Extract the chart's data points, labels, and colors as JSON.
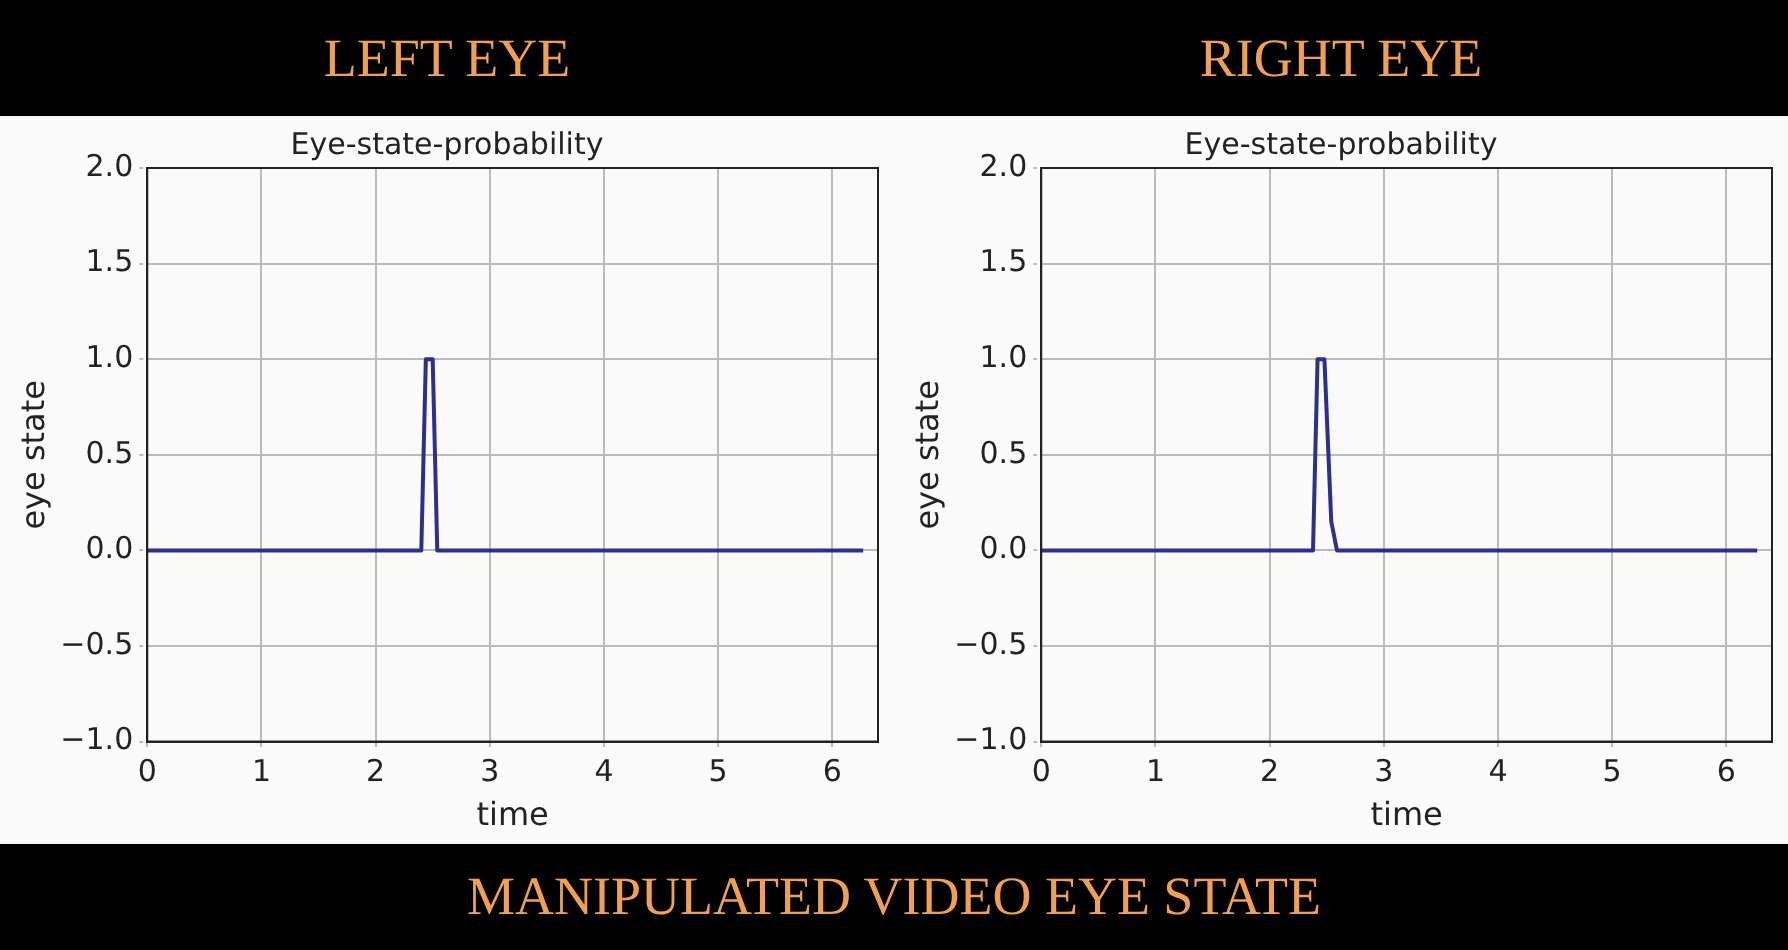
{
  "chart_data": [
    {
      "type": "line",
      "title": "Eye-state-probability",
      "subtitle": "LEFT EYE",
      "xlabel": "time",
      "ylabel": "eye state",
      "annotations": [
        "MANIPULATED VIDEO EYE STATE"
      ],
      "series": [
        {
          "color": "#2b2f8f",
          "x": [
            0,
            2.4,
            2.44,
            2.5,
            2.54,
            6.27
          ],
          "values": [
            0,
            0,
            1,
            1,
            0,
            0
          ]
        }
      ],
      "xlim": [
        0,
        6.4
      ],
      "ylim": [
        -1,
        2
      ],
      "xticks": [
        0,
        1,
        2,
        3,
        4,
        5,
        6
      ],
      "yticks": [
        {
          "value": -1,
          "label": "−1.0"
        },
        {
          "value": -0.5,
          "label": "−0.5"
        },
        {
          "value": 0,
          "label": "0.0"
        },
        {
          "value": 0.5,
          "label": "0.5"
        },
        {
          "value": 1,
          "label": "1.0"
        },
        {
          "value": 1.5,
          "label": "1.5"
        },
        {
          "value": 2,
          "label": "2.0"
        }
      ],
      "grid": true,
      "line_style": "solid"
    },
    {
      "type": "line",
      "title": "Eye-state-probability",
      "subtitle": "RIGHT EYE",
      "xlabel": "time",
      "ylabel": "eye state",
      "series": [
        {
          "color": "#2b2f8f",
          "x": [
            0,
            2.38,
            2.42,
            2.48,
            2.54,
            2.59,
            6.27
          ],
          "values": [
            0,
            0,
            1,
            1,
            0.15,
            0,
            0
          ]
        }
      ],
      "xlim": [
        0,
        6.4
      ],
      "ylim": [
        -1,
        2
      ],
      "xticks": [
        0,
        1,
        2,
        3,
        4,
        5,
        6
      ],
      "yticks": [
        {
          "value": -1,
          "label": "−1.0"
        },
        {
          "value": -0.5,
          "label": "−0.5"
        },
        {
          "value": 0,
          "label": "0.0"
        },
        {
          "value": 0.5,
          "label": "0.5"
        },
        {
          "value": 1,
          "label": "1.0"
        },
        {
          "value": 1.5,
          "label": "1.5"
        },
        {
          "value": 2,
          "label": "2.0"
        }
      ],
      "grid": true,
      "line_style": "solid"
    }
  ]
}
